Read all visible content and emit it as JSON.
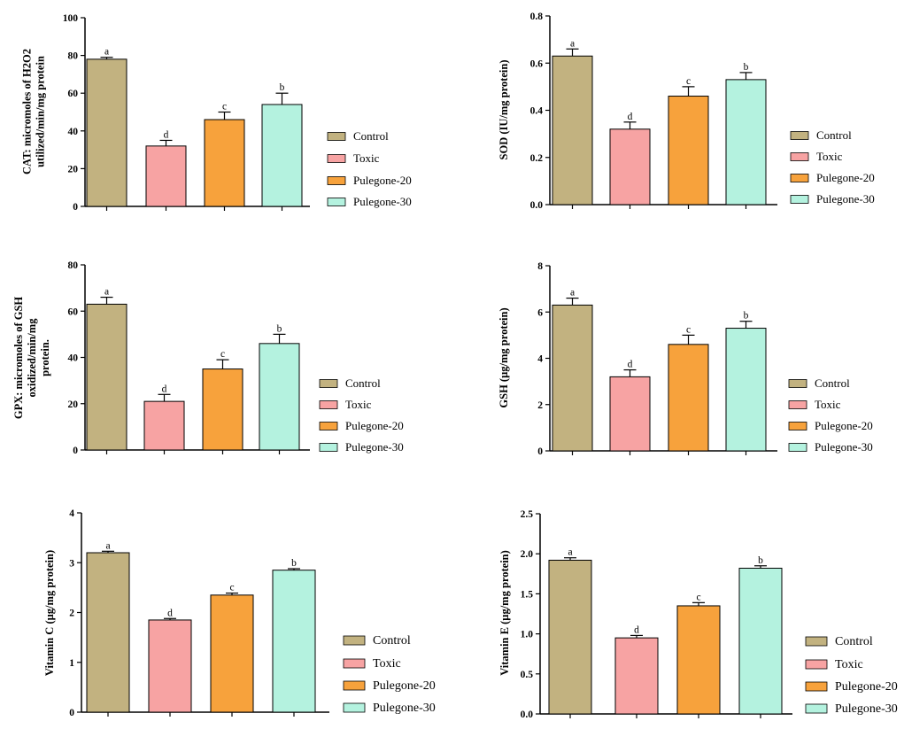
{
  "colors": {
    "Control": "#c2b280",
    "Toxic": "#f7a3a3",
    "Pulegone-20": "#f7a23c",
    "Pulegone-30": "#b4f2df",
    "axis": "#000000"
  },
  "legend_labels": [
    "Control",
    "Toxic",
    "Pulegone-20",
    "Pulegone-30"
  ],
  "chart_data": [
    {
      "type": "bar",
      "categories": [
        "Control",
        "Toxic",
        "Pulegone-20",
        "Pulegone-30"
      ],
      "values": [
        78,
        32,
        46,
        54
      ],
      "errors": [
        1,
        3,
        4,
        6
      ],
      "letters": [
        "a",
        "d",
        "c",
        "b"
      ],
      "ylabel": [
        "CAT: micromoles of H2O2",
        "utilized/min/mg protein"
      ],
      "ylim": [
        0,
        100
      ],
      "yticks": [
        "0",
        "20",
        "40",
        "60",
        "80",
        "100"
      ],
      "legend": [
        "Control",
        "Toxic",
        "Pulegone-20",
        "Pulegone-30"
      ]
    },
    {
      "type": "bar",
      "categories": [
        "Control",
        "Toxic",
        "Pulegone-20",
        "Pulegone-30"
      ],
      "values": [
        0.63,
        0.32,
        0.46,
        0.53
      ],
      "errors": [
        0.03,
        0.03,
        0.04,
        0.03
      ],
      "letters": [
        "a",
        "d",
        "c",
        "b"
      ],
      "ylabel": [
        "SOD (IU/mg protein)"
      ],
      "ylim": [
        0,
        0.8
      ],
      "yticks": [
        "0.0",
        "0.2",
        "0.4",
        "0.6",
        "0.8"
      ],
      "legend": [
        "Control",
        "Toxic",
        "Pulegone-20",
        "Pulegone-30"
      ]
    },
    {
      "type": "bar",
      "categories": [
        "Control",
        "Toxic",
        "Pulegone-20",
        "Pulegone-30"
      ],
      "values": [
        63,
        21,
        35,
        46
      ],
      "errors": [
        3,
        3,
        4,
        4
      ],
      "letters": [
        "a",
        "d",
        "c",
        "b"
      ],
      "ylabel": [
        "GPX: micromoles of GSH",
        "oxidized/min/mg",
        "protein."
      ],
      "ylim": [
        0,
        80
      ],
      "yticks": [
        "0",
        "20",
        "40",
        "60",
        "80"
      ],
      "legend": [
        "Control",
        "Toxic",
        "Pulegone-20",
        "Pulegone-30"
      ]
    },
    {
      "type": "bar",
      "categories": [
        "Control",
        "Toxic",
        "Pulegone-20",
        "Pulegone-30"
      ],
      "values": [
        6.3,
        3.2,
        4.6,
        5.3
      ],
      "errors": [
        0.3,
        0.3,
        0.4,
        0.3
      ],
      "letters": [
        "a",
        "d",
        "c",
        "b"
      ],
      "ylabel": [
        "GSH (µg/mg protein)"
      ],
      "ylim": [
        0,
        8
      ],
      "yticks": [
        "0",
        "2",
        "4",
        "6",
        "8"
      ],
      "legend": [
        "Control",
        "Toxic",
        "Pulegone-20",
        "Pulegone-30"
      ]
    },
    {
      "type": "bar",
      "categories": [
        "Control",
        "Toxic",
        "Pulegone-20",
        "Pulegone-30"
      ],
      "values": [
        3.2,
        1.85,
        2.35,
        2.85
      ],
      "errors": [
        0.03,
        0.03,
        0.04,
        0.03
      ],
      "letters": [
        "a",
        "d",
        "c",
        "b"
      ],
      "ylabel": [
        "Vitamin C (µg/mg protein)"
      ],
      "ylim": [
        0,
        4
      ],
      "yticks": [
        "0",
        "1",
        "2",
        "3",
        "4"
      ],
      "legend": [
        "Control",
        "Toxic",
        "Pulegone-20",
        "Pulegone-30"
      ]
    },
    {
      "type": "bar",
      "categories": [
        "Control",
        "Toxic",
        "Pulegone-20",
        "Pulegone-30"
      ],
      "values": [
        1.92,
        0.95,
        1.35,
        1.82
      ],
      "errors": [
        0.03,
        0.03,
        0.04,
        0.03
      ],
      "letters": [
        "a",
        "d",
        "c",
        "b"
      ],
      "ylabel": [
        "Vitamin E (µg/mg protein)"
      ],
      "ylim": [
        0,
        2.5
      ],
      "yticks": [
        "0.0",
        "0.5",
        "1.0",
        "1.5",
        "2.0",
        "2.5"
      ],
      "legend": [
        "Control",
        "Toxic",
        "Pulegone-20",
        "Pulegone-30"
      ]
    }
  ]
}
